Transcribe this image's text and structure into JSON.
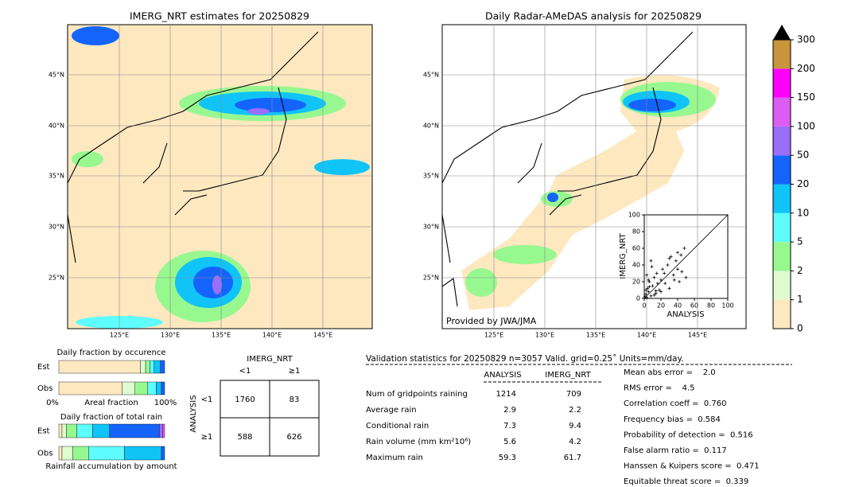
{
  "map1": {
    "title": "IMERG_NRT estimates for 20250829"
  },
  "map2": {
    "title": "Daily Radar-AMeDAS analysis for 20250829",
    "credit": "Provided by JWA/JMA"
  },
  "lat_labels": [
    "45°N",
    "40°N",
    "35°N",
    "30°N",
    "25°N"
  ],
  "lon_labels": [
    "125°E",
    "130°E",
    "135°E",
    "140°E",
    "145°E"
  ],
  "colorbar": {
    "levels": [
      0,
      1,
      2,
      5,
      10,
      20,
      50,
      100,
      150,
      200,
      300
    ],
    "colors": [
      "#fde8c0",
      "#defcd0",
      "#98f890",
      "#5efcfc",
      "#10c4f8",
      "#1464fc",
      "#9a6ef8",
      "#dc5cf4",
      "#fc00fc",
      "#c8943c"
    ]
  },
  "scatter": {
    "xlabel": "ANALYSIS",
    "ylabel": "IMERG_NRT",
    "lim": [
      0,
      100
    ],
    "ticks": [
      0,
      20,
      40,
      60,
      80,
      100
    ],
    "x": [
      1,
      2,
      3,
      4,
      5,
      6,
      8,
      10,
      12,
      14,
      15,
      18,
      20,
      22,
      25,
      28,
      30,
      32,
      35,
      38,
      40,
      42,
      45,
      48,
      50,
      3,
      6,
      9,
      12,
      16,
      20,
      24,
      30,
      36,
      40,
      44,
      8,
      5,
      2,
      14
    ],
    "y": [
      2,
      5,
      1,
      12,
      8,
      20,
      3,
      15,
      25,
      6,
      30,
      10,
      22,
      35,
      18,
      40,
      12,
      50,
      28,
      45,
      55,
      20,
      32,
      60,
      25,
      28,
      14,
      38,
      4,
      18,
      8,
      30,
      48,
      22,
      35,
      52,
      45,
      22,
      10,
      9
    ]
  },
  "occurrence": {
    "title": "Daily fraction by occurence",
    "rows": [
      "Est",
      "Obs"
    ],
    "xlabel": "Areal fraction",
    "left": "0%",
    "right": "100%",
    "est": [
      0.77,
      0.05,
      0.04,
      0.04,
      0.06,
      0.04
    ],
    "obs": [
      0.6,
      0.12,
      0.12,
      0.08,
      0.05,
      0.03
    ]
  },
  "amount": {
    "title": "Daily fraction of total rain",
    "rows": [
      "Est",
      "Obs"
    ],
    "footer": "Rainfall accumulation by amount",
    "est": [
      0.03,
      0.04,
      0.1,
      0.15,
      0.16,
      0.47,
      0.03,
      0.02
    ],
    "obs": [
      0.03,
      0.1,
      0.15,
      0.34,
      0.35,
      0.03
    ]
  },
  "contingency": {
    "title": "IMERG_NRT",
    "cols": [
      "<1",
      "≥1"
    ],
    "ylabel": "ANALYSIS",
    "rows": [
      "<1",
      "≥1"
    ],
    "cells": [
      [
        "1760",
        "83"
      ],
      [
        "588",
        "626"
      ]
    ]
  },
  "stats": {
    "header": "Validation statistics for 20250829  n=3057 Valid. grid=0.25˚ Units=mm/day.",
    "columns": [
      "ANALYSIS",
      "IMERG_NRT"
    ],
    "rows": [
      {
        "label": "Num of gridpoints raining",
        "values": [
          "1214",
          "709"
        ]
      },
      {
        "label": "Average rain",
        "values": [
          "2.9",
          "2.2"
        ]
      },
      {
        "label": "Conditional rain",
        "values": [
          "7.3",
          "9.4"
        ]
      },
      {
        "label": "Rain volume (mm km²10⁶)",
        "values": [
          "5.6",
          "4.2"
        ]
      },
      {
        "label": "Maximum rain",
        "values": [
          "59.3",
          "61.7"
        ]
      }
    ],
    "scores": [
      "Mean abs error =    2.0",
      "RMS error =    4.5",
      "Correlation coeff =  0.760",
      "Frequency bias =  0.584",
      "Probability of detection =  0.516",
      "False alarm ratio =  0.117",
      "Hanssen & Kuipers score =  0.471",
      "Equitable threat score =  0.339"
    ]
  }
}
